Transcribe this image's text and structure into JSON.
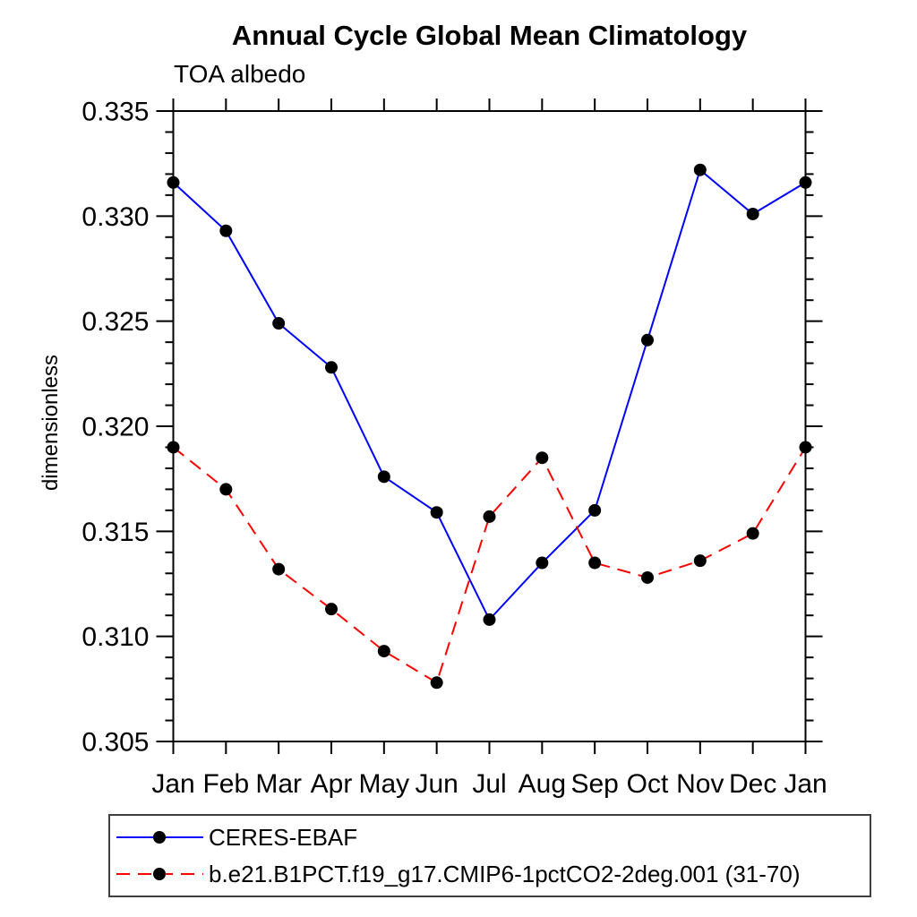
{
  "chart_data": {
    "type": "line",
    "title": "Annual Cycle Global Mean Climatology",
    "subtitle": "TOA albedo",
    "ylabel": "dimensionless",
    "xlabel": "",
    "x_categories": [
      "Jan",
      "Feb",
      "Mar",
      "Apr",
      "May",
      "Jun",
      "Jul",
      "Aug",
      "Sep",
      "Oct",
      "Nov",
      "Dec",
      "Jan"
    ],
    "ylim": [
      0.305,
      0.335
    ],
    "ytick_step": 0.005,
    "yminor_step": 0.001,
    "ytick_labels": [
      "0.305",
      "0.310",
      "0.315",
      "0.320",
      "0.325",
      "0.330",
      "0.335"
    ],
    "grid": false,
    "legend_position": "bottom-left",
    "axis_color": "#000000",
    "series": [
      {
        "name": "CERES-EBAF",
        "color": "#0000ff",
        "line_style": "solid",
        "marker": "circle",
        "marker_color": "#000000",
        "values": [
          0.3316,
          0.3293,
          0.3249,
          0.3228,
          0.3176,
          0.3159,
          0.3108,
          0.3135,
          0.316,
          0.3241,
          0.3322,
          0.3301,
          0.3316
        ]
      },
      {
        "name": "b.e21.B1PCT.f19_g17.CMIP6-1pctCO2-2deg.001 (31-70)",
        "color": "#ff0000",
        "line_style": "dashed",
        "marker": "circle",
        "marker_color": "#000000",
        "values": [
          0.319,
          0.317,
          0.3132,
          0.3113,
          0.3093,
          0.3078,
          0.3157,
          0.3185,
          0.3135,
          0.3128,
          0.3136,
          0.3149,
          0.319
        ]
      }
    ]
  }
}
